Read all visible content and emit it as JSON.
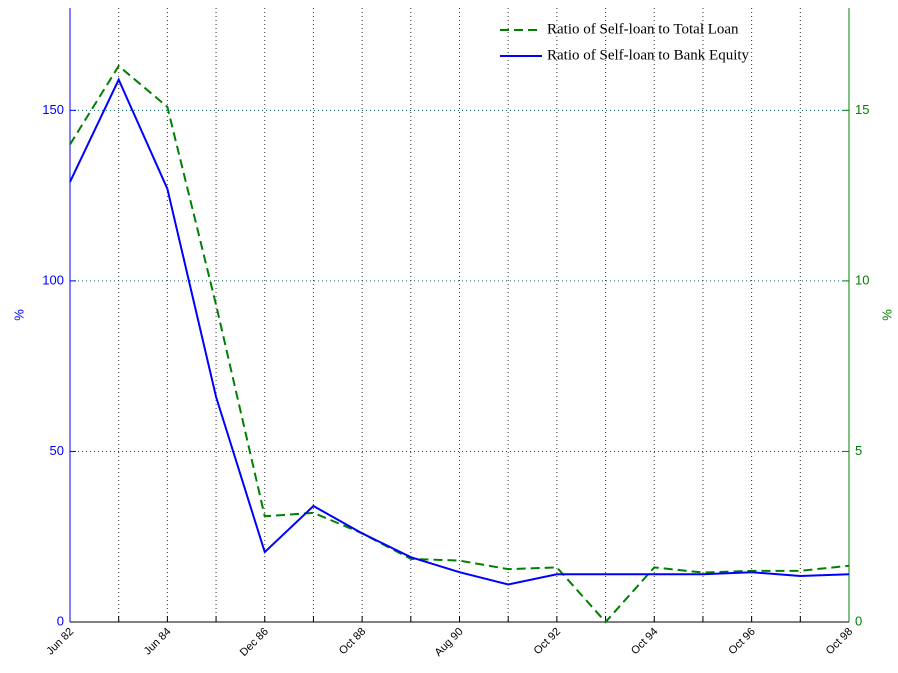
{
  "chart_data": {
    "type": "line",
    "categories": [
      "Jun 82",
      null,
      "Jun 84",
      null,
      "Dec 86",
      null,
      "Oct 88",
      null,
      "Aug 90",
      null,
      "Oct 92",
      null,
      "Oct 94",
      null,
      "Oct 96",
      null,
      "Oct 98"
    ],
    "series": [
      {
        "name": "Ratio of Self-loan to Total Loan",
        "color": "#008000",
        "linestyle": "dashed",
        "axis": "y2",
        "values": [
          14,
          16.3,
          15.1,
          9.3,
          3.1,
          3.2,
          2.6,
          1.85,
          1.8,
          1.55,
          1.6,
          0,
          1.6,
          1.45,
          1.5,
          1.5,
          1.65
        ]
      },
      {
        "name": "Ratio of Self-loan to Bank Equity",
        "color": "#0000ff",
        "linestyle": "solid",
        "values": [
          129,
          159,
          127,
          66,
          20.5,
          34,
          26,
          19,
          14.6,
          11,
          14,
          14,
          14,
          14,
          14.6,
          13.5,
          14
        ]
      }
    ],
    "ylabel": "%",
    "y2label": "%",
    "ycolor": "#0000ff",
    "y2color": "#008000",
    "ylim": [
      0,
      180
    ],
    "yticks": [
      0,
      50,
      100,
      150
    ],
    "y2lim": [
      0,
      18
    ],
    "y2ticks": [
      0,
      5,
      10,
      15
    ],
    "grid": true,
    "legend": "upper right"
  }
}
